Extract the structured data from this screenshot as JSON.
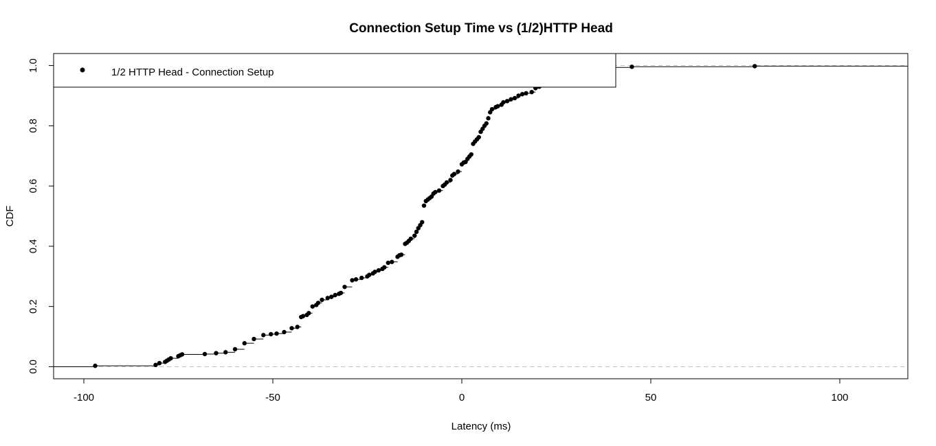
{
  "chart_data": {
    "type": "line",
    "title": "Connection Setup Time vs (1/2)HTTP Head",
    "xlabel": "Latency (ms)",
    "ylabel": "CDF",
    "xlim": [
      -108,
      118
    ],
    "ylim": [
      -0.04,
      1.04
    ],
    "x_ticks": [
      -100,
      -50,
      0,
      50,
      100
    ],
    "x_tick_labels": [
      "-100",
      "-50",
      "0",
      "50",
      "100"
    ],
    "y_ticks": [
      0.0,
      0.2,
      0.4,
      0.6,
      0.8,
      1.0
    ],
    "y_tick_labels": [
      "0.0",
      "0.2",
      "0.4",
      "0.6",
      "0.8",
      "1.0"
    ],
    "reference_lines_y": [
      0,
      1
    ],
    "grid": false,
    "legend_position": "top-left",
    "colors": {
      "series": "#000000",
      "reference": "#bdbdbd"
    },
    "series": [
      {
        "name": "1/2 HTTP Head - Connection Setup",
        "style": "ecdf-step-with-points",
        "points": [
          [
            -97,
            0.003
          ],
          [
            -81,
            0.006
          ],
          [
            -80,
            0.012
          ],
          [
            -78.5,
            0.016
          ],
          [
            -78,
            0.02
          ],
          [
            -77.5,
            0.024
          ],
          [
            -77,
            0.028
          ],
          [
            -75,
            0.035
          ],
          [
            -74.5,
            0.038
          ],
          [
            -74,
            0.041
          ],
          [
            -68,
            0.042
          ],
          [
            -65,
            0.045
          ],
          [
            -62.5,
            0.048
          ],
          [
            -60,
            0.058
          ],
          [
            -57.5,
            0.078
          ],
          [
            -55,
            0.092
          ],
          [
            -52.5,
            0.105
          ],
          [
            -50.5,
            0.108
          ],
          [
            -49,
            0.11
          ],
          [
            -47,
            0.115
          ],
          [
            -45,
            0.128
          ],
          [
            -43.5,
            0.132
          ],
          [
            -42.5,
            0.165
          ],
          [
            -42,
            0.168
          ],
          [
            -41,
            0.172
          ],
          [
            -40.5,
            0.178
          ],
          [
            -39.5,
            0.2
          ],
          [
            -38.5,
            0.205
          ],
          [
            -38,
            0.212
          ],
          [
            -37,
            0.222
          ],
          [
            -35.5,
            0.228
          ],
          [
            -34.5,
            0.232
          ],
          [
            -33.5,
            0.238
          ],
          [
            -32.5,
            0.242
          ],
          [
            -32,
            0.245
          ],
          [
            -31,
            0.265
          ],
          [
            -29,
            0.287
          ],
          [
            -28,
            0.29
          ],
          [
            -26.5,
            0.295
          ],
          [
            -25,
            0.3
          ],
          [
            -24.5,
            0.305
          ],
          [
            -23.5,
            0.31
          ],
          [
            -23,
            0.315
          ],
          [
            -22,
            0.32
          ],
          [
            -21,
            0.325
          ],
          [
            -20.5,
            0.33
          ],
          [
            -19.5,
            0.345
          ],
          [
            -18.5,
            0.348
          ],
          [
            -17,
            0.365
          ],
          [
            -16.5,
            0.37
          ],
          [
            -16,
            0.372
          ],
          [
            -15,
            0.408
          ],
          [
            -14.5,
            0.412
          ],
          [
            -14,
            0.418
          ],
          [
            -13.5,
            0.425
          ],
          [
            -12.5,
            0.435
          ],
          [
            -12,
            0.448
          ],
          [
            -11.5,
            0.46
          ],
          [
            -11,
            0.47
          ],
          [
            -10.5,
            0.48
          ],
          [
            -10,
            0.535
          ],
          [
            -9.5,
            0.55
          ],
          [
            -9,
            0.555
          ],
          [
            -8.5,
            0.56
          ],
          [
            -8,
            0.565
          ],
          [
            -7.5,
            0.575
          ],
          [
            -7,
            0.58
          ],
          [
            -6,
            0.585
          ],
          [
            -5,
            0.6
          ],
          [
            -4.5,
            0.605
          ],
          [
            -4,
            0.612
          ],
          [
            -3,
            0.62
          ],
          [
            -2.5,
            0.635
          ],
          [
            -2,
            0.64
          ],
          [
            -1,
            0.648
          ],
          [
            0,
            0.672
          ],
          [
            0.5,
            0.678
          ],
          [
            1,
            0.68
          ],
          [
            1.5,
            0.69
          ],
          [
            2,
            0.698
          ],
          [
            2.5,
            0.705
          ],
          [
            3,
            0.74
          ],
          [
            3.5,
            0.748
          ],
          [
            4,
            0.755
          ],
          [
            4.5,
            0.762
          ],
          [
            5,
            0.78
          ],
          [
            5.5,
            0.79
          ],
          [
            6,
            0.8
          ],
          [
            6.5,
            0.808
          ],
          [
            7,
            0.825
          ],
          [
            7.5,
            0.845
          ],
          [
            8,
            0.855
          ],
          [
            9,
            0.862
          ],
          [
            9.5,
            0.865
          ],
          [
            10.5,
            0.87
          ],
          [
            11,
            0.878
          ],
          [
            12,
            0.882
          ],
          [
            13,
            0.888
          ],
          [
            14,
            0.892
          ],
          [
            15,
            0.9
          ],
          [
            16,
            0.905
          ],
          [
            17,
            0.908
          ],
          [
            18.5,
            0.912
          ],
          [
            19.5,
            0.925
          ],
          [
            20.5,
            0.93
          ],
          [
            21,
            0.935
          ],
          [
            21.5,
            0.938
          ],
          [
            22,
            0.94
          ],
          [
            23,
            0.943
          ],
          [
            24,
            0.95
          ],
          [
            24.5,
            0.955
          ],
          [
            25,
            0.958
          ],
          [
            26,
            0.962
          ],
          [
            27,
            0.965
          ],
          [
            28,
            0.97
          ],
          [
            29,
            0.972
          ],
          [
            30,
            0.975
          ],
          [
            31.5,
            0.978
          ],
          [
            32.5,
            0.982
          ],
          [
            33,
            0.985
          ],
          [
            34.5,
            0.988
          ],
          [
            36.5,
            0.99
          ],
          [
            37.5,
            0.992
          ],
          [
            38,
            0.993
          ],
          [
            39.5,
            0.994
          ],
          [
            45,
            0.996
          ],
          [
            77.5,
            0.998
          ]
        ]
      }
    ]
  }
}
